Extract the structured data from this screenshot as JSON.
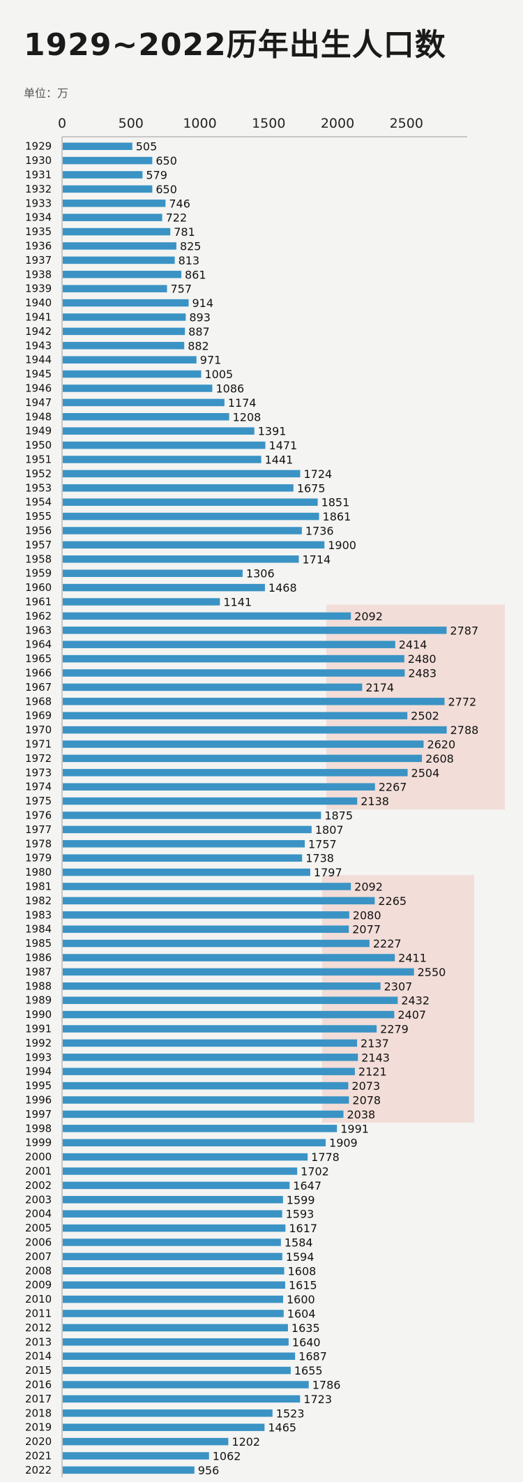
{
  "chart_data": {
    "type": "bar",
    "orientation": "horizontal",
    "title": "1929~2022历年出生人口数",
    "unit_label": "单位：万",
    "xlim": [
      0,
      2800
    ],
    "x_ticks": [
      0,
      500,
      1000,
      1500,
      2000,
      2500
    ],
    "highlight_ranges": [
      [
        1962,
        1975
      ],
      [
        1981,
        1997
      ]
    ],
    "colors": {
      "bar": "#3a93c4",
      "highlight": "#f2d6cf"
    },
    "categories": [
      "1929",
      "1930",
      "1931",
      "1932",
      "1933",
      "1934",
      "1935",
      "1936",
      "1937",
      "1938",
      "1939",
      "1940",
      "1941",
      "1942",
      "1943",
      "1944",
      "1945",
      "1946",
      "1947",
      "1948",
      "1949",
      "1950",
      "1951",
      "1952",
      "1953",
      "1954",
      "1955",
      "1956",
      "1957",
      "1958",
      "1959",
      "1960",
      "1961",
      "1962",
      "1963",
      "1964",
      "1965",
      "1966",
      "1967",
      "1968",
      "1969",
      "1970",
      "1971",
      "1972",
      "1973",
      "1974",
      "1975",
      "1976",
      "1977",
      "1978",
      "1979",
      "1980",
      "1981",
      "1982",
      "1983",
      "1984",
      "1985",
      "1986",
      "1987",
      "1988",
      "1989",
      "1990",
      "1991",
      "1992",
      "1993",
      "1994",
      "1995",
      "1996",
      "1997",
      "1998",
      "1999",
      "2000",
      "2001",
      "2002",
      "2003",
      "2004",
      "2005",
      "2006",
      "2007",
      "2008",
      "2009",
      "2010",
      "2011",
      "2012",
      "2013",
      "2014",
      "2015",
      "2016",
      "2017",
      "2018",
      "2019",
      "2020",
      "2021",
      "2022"
    ],
    "values": [
      505,
      650,
      579,
      650,
      746,
      722,
      781,
      825,
      813,
      861,
      757,
      914,
      893,
      887,
      882,
      971,
      1005,
      1086,
      1174,
      1208,
      1391,
      1471,
      1441,
      1724,
      1675,
      1851,
      1861,
      1736,
      1900,
      1714,
      1306,
      1468,
      1141,
      2092,
      2787,
      2414,
      2480,
      2483,
      2174,
      2772,
      2502,
      2788,
      2620,
      2608,
      2504,
      2267,
      2138,
      1875,
      1807,
      1757,
      1738,
      1797,
      2092,
      2265,
      2080,
      2077,
      2227,
      2411,
      2550,
      2307,
      2432,
      2407,
      2279,
      2137,
      2143,
      2121,
      2073,
      2078,
      2038,
      1991,
      1909,
      1778,
      1702,
      1647,
      1599,
      1593,
      1617,
      1584,
      1594,
      1608,
      1615,
      1600,
      1604,
      1635,
      1640,
      1687,
      1655,
      1786,
      1723,
      1523,
      1465,
      1202,
      1062,
      956
    ]
  }
}
